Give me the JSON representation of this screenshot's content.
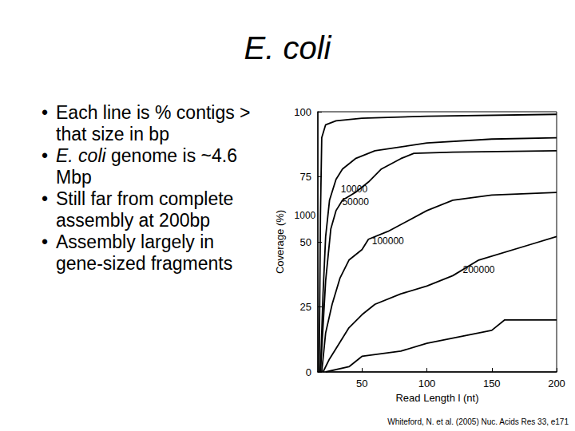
{
  "slide": {
    "title": "E. coli",
    "bullets": [
      "Each line is % contigs > that size in bp",
      "E. coli genome is ~4.6 Mbp",
      "Still far from complete assembly at 200bp",
      "Assembly largely in gene-sized fragments"
    ],
    "citation": "Whiteford, N. et al. (2005) Nuc. Acids Res 33, e171"
  },
  "chart_data": {
    "type": "line",
    "x_label": "Read Length l (nt)",
    "y_label": "Coverage (%)",
    "xlim": [
      16,
      200
    ],
    "xticks": [
      50,
      100,
      150,
      200
    ],
    "ylim": [
      0,
      100
    ],
    "yticks": [
      0,
      25,
      50,
      75,
      100
    ],
    "grid": false,
    "color": "#000000",
    "series": [
      {
        "name": "1000",
        "x": [
          17,
          18,
          19,
          22,
          30,
          50,
          100,
          200
        ],
        "values": [
          0,
          60,
          90,
          95,
          96.5,
          97.5,
          98.3,
          99
        ]
      },
      {
        "name": "10000",
        "x": [
          18,
          20,
          22,
          25,
          30,
          35,
          45,
          60,
          100,
          150,
          200
        ],
        "values": [
          0,
          30,
          52,
          66,
          74,
          78,
          82,
          85,
          88,
          89.5,
          90
        ]
      },
      {
        "name": "50000",
        "x": [
          18,
          22,
          26,
          30,
          35,
          45,
          55,
          65,
          80,
          90,
          120,
          200
        ],
        "values": [
          0,
          35,
          55,
          62,
          66,
          69,
          73,
          78,
          82,
          84,
          84.5,
          85
        ]
      },
      {
        "name": "100000",
        "x": [
          19,
          22,
          27,
          33,
          40,
          50,
          55,
          70,
          85,
          100,
          120,
          150,
          200
        ],
        "values": [
          0,
          15,
          26,
          36,
          43,
          47,
          51,
          54,
          58,
          62,
          66,
          68,
          69
        ]
      },
      {
        "name": "200000",
        "x": [
          20,
          25,
          30,
          40,
          50,
          60,
          80,
          100,
          120,
          140,
          180,
          200
        ],
        "values": [
          0,
          5,
          9,
          17,
          22,
          26,
          30,
          33,
          37,
          43,
          49,
          52
        ]
      },
      {
        "name": null,
        "x": [
          22,
          40,
          50,
          80,
          100,
          130,
          150,
          160,
          200
        ],
        "values": [
          0,
          2,
          6,
          8,
          11,
          14,
          16,
          20,
          20
        ]
      }
    ]
  }
}
